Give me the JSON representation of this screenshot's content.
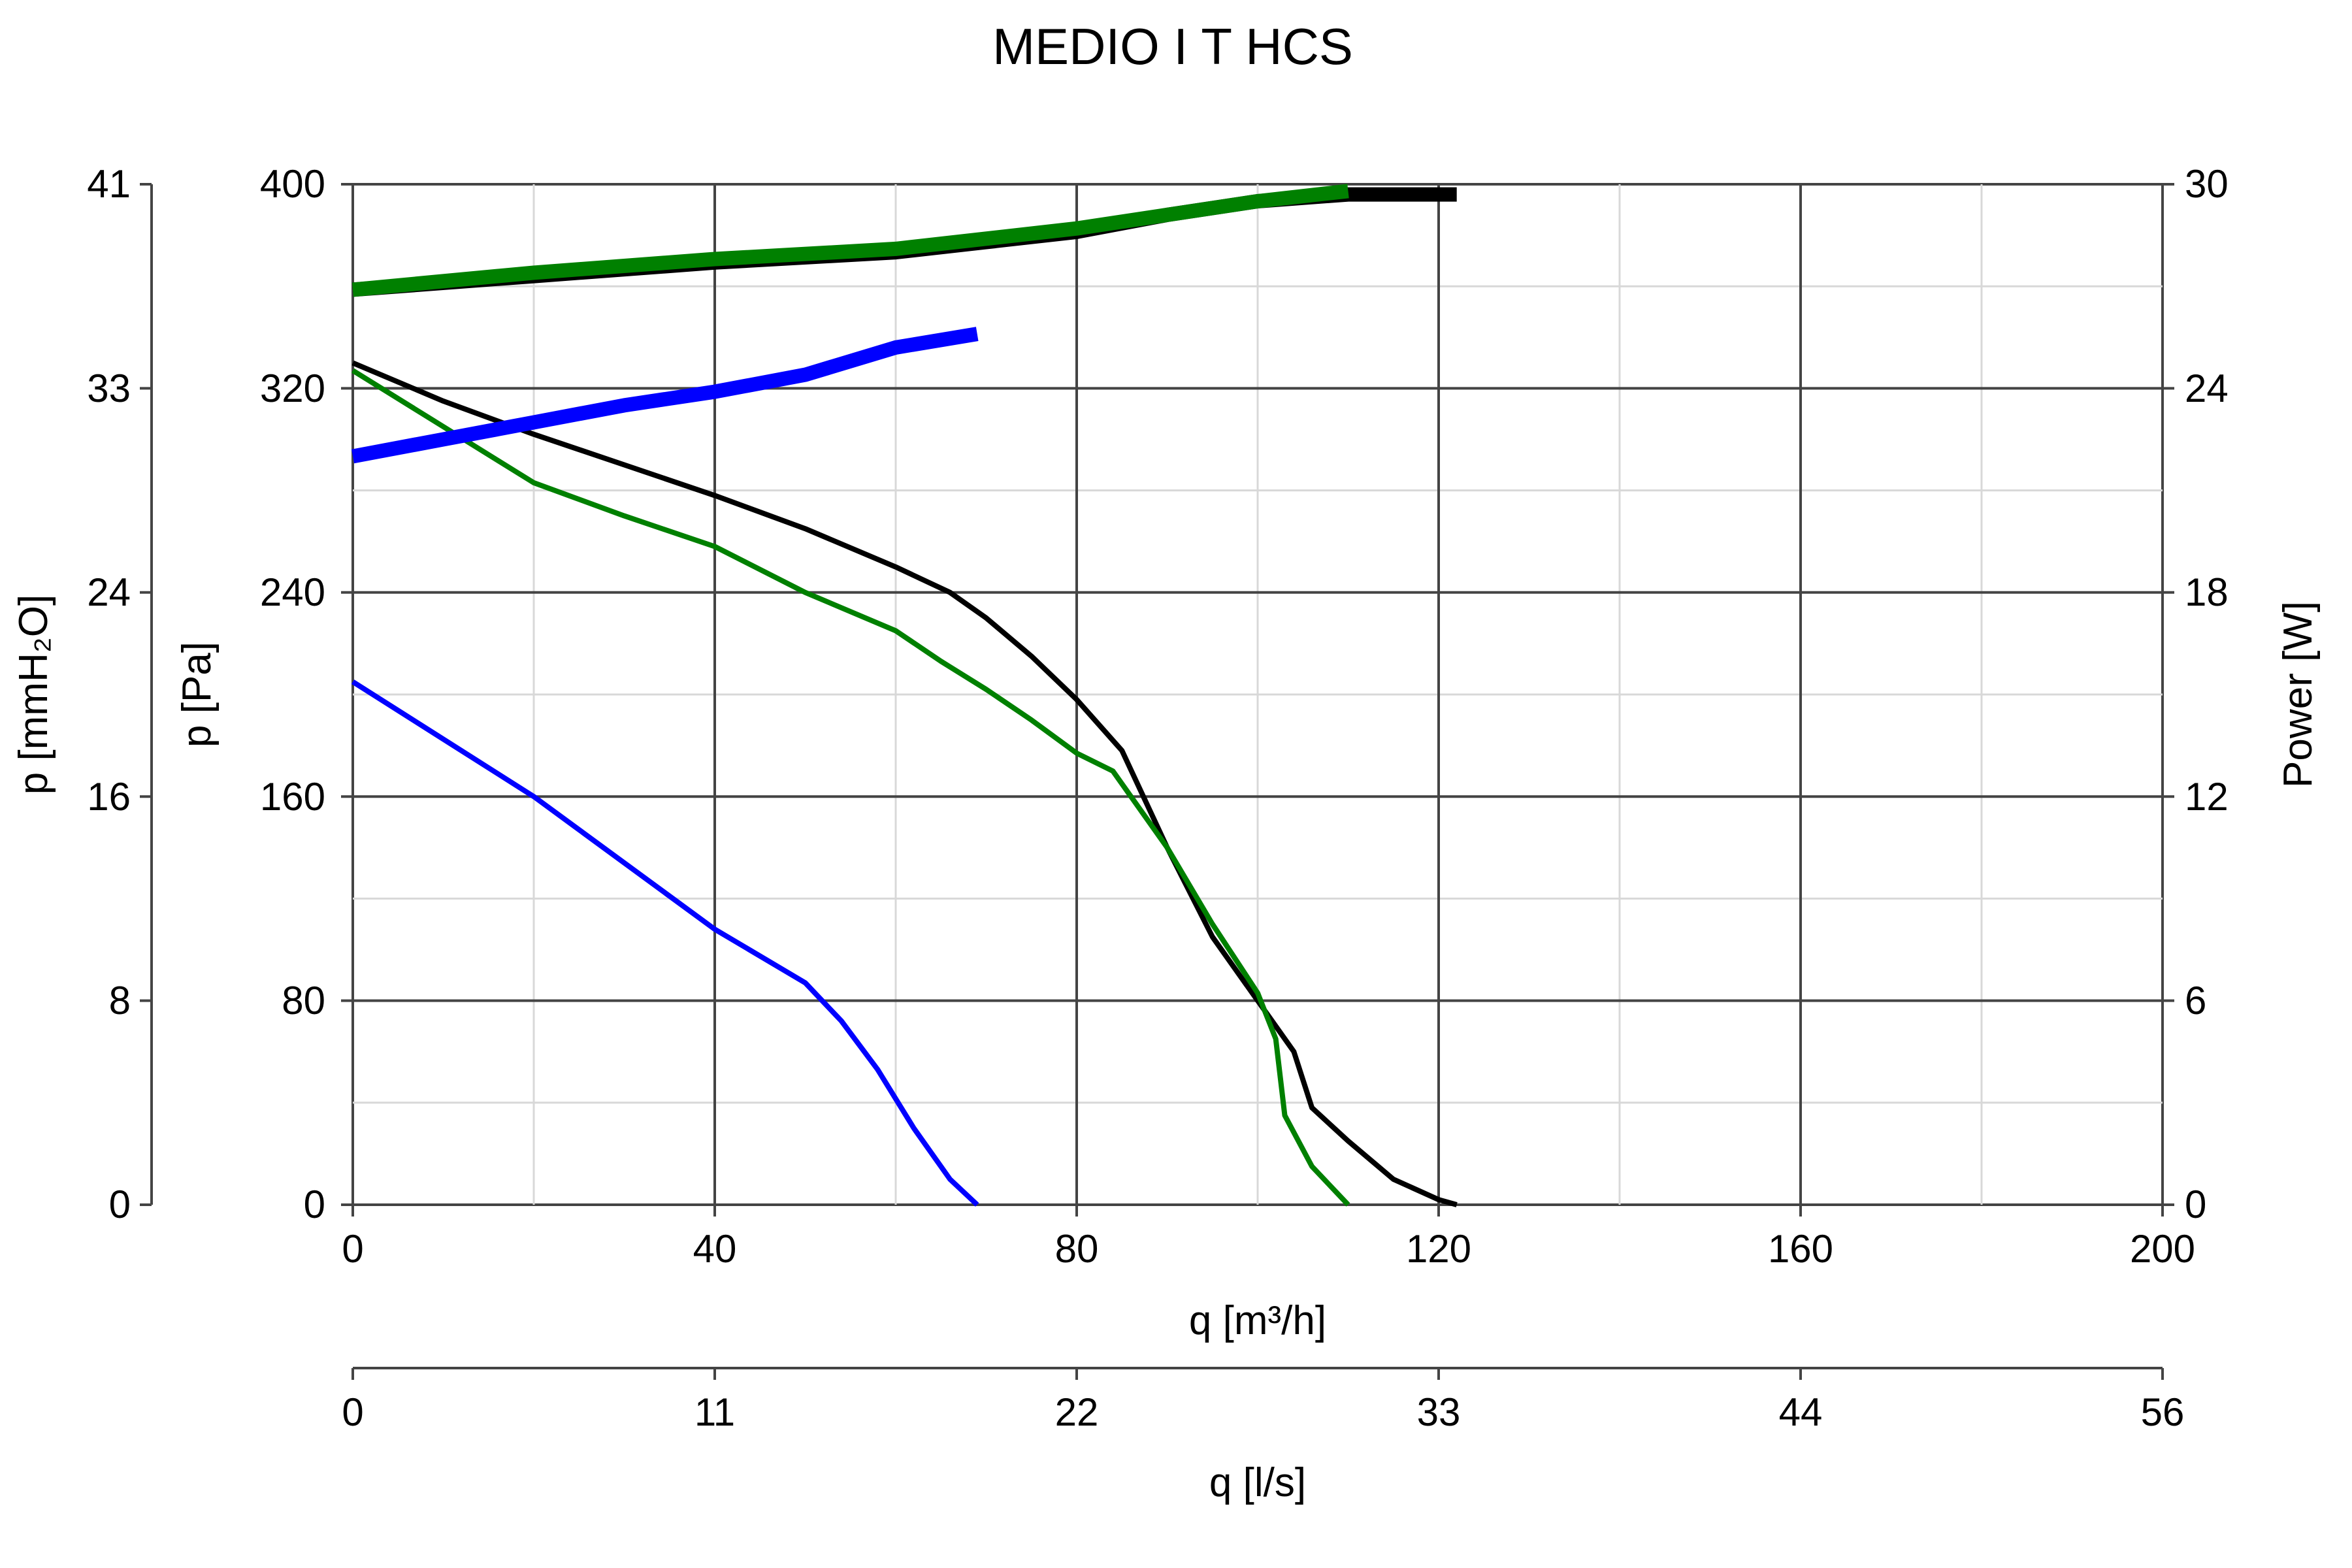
{
  "chart_data": {
    "type": "line",
    "title": "MEDIO I T HCS",
    "xlabel": "q [m³/h]",
    "xlabel_secondary": "q [l/s]",
    "ylabel": "p [Pa]",
    "ylabel_secondary": "p [mmH₂O]",
    "ylabel_right": "Power [W]",
    "xlim": [
      0,
      200
    ],
    "ylim": [
      0,
      400
    ],
    "ylim_right": [
      0,
      30
    ],
    "grid": true,
    "x_ticks": [
      "0",
      "40",
      "80",
      "120",
      "160",
      "200"
    ],
    "x_ticks_ls": [
      "0",
      "11",
      "22",
      "33",
      "44",
      "56"
    ],
    "y_ticks_pa": [
      "0",
      "80",
      "160",
      "240",
      "320",
      "400"
    ],
    "y_ticks_mmh2o": [
      "0",
      "8",
      "16",
      "24",
      "33",
      "41"
    ],
    "y_ticks_power": [
      "0",
      "6",
      "12",
      "18",
      "24",
      "30"
    ],
    "series": [
      {
        "kind": "pressure",
        "axis": "pressure",
        "color": "#000000",
        "points": [
          [
            0,
            330
          ],
          [
            10,
            315
          ],
          [
            20,
            302
          ],
          [
            30,
            290
          ],
          [
            40,
            278
          ],
          [
            50,
            265
          ],
          [
            60,
            250
          ],
          [
            66,
            240
          ],
          [
            70,
            230
          ],
          [
            75,
            215
          ],
          [
            80,
            198
          ],
          [
            85,
            178
          ],
          [
            90,
            140
          ],
          [
            95,
            105
          ],
          [
            100,
            80
          ],
          [
            104,
            60
          ],
          [
            106,
            38
          ],
          [
            110,
            25
          ],
          [
            115,
            10
          ],
          [
            120,
            2
          ],
          [
            122,
            0
          ]
        ]
      },
      {
        "kind": "pressure",
        "axis": "pressure",
        "color": "#008000",
        "points": [
          [
            0,
            327
          ],
          [
            10,
            305
          ],
          [
            20,
            283
          ],
          [
            30,
            270
          ],
          [
            40,
            258
          ],
          [
            50,
            240
          ],
          [
            60,
            225
          ],
          [
            65,
            213
          ],
          [
            70,
            202
          ],
          [
            75,
            190
          ],
          [
            80,
            177
          ],
          [
            84,
            170
          ],
          [
            90,
            140
          ],
          [
            95,
            110
          ],
          [
            100,
            83
          ],
          [
            102,
            65
          ],
          [
            103,
            35
          ],
          [
            106,
            15
          ],
          [
            110,
            0
          ]
        ]
      },
      {
        "kind": "pressure",
        "axis": "pressure",
        "color": "#0000ff",
        "points": [
          [
            0,
            205
          ],
          [
            20,
            160
          ],
          [
            40,
            108
          ],
          [
            50,
            87
          ],
          [
            54,
            72
          ],
          [
            58,
            53
          ],
          [
            62,
            30
          ],
          [
            66,
            10
          ],
          [
            69,
            0
          ]
        ]
      },
      {
        "kind": "power",
        "axis": "power",
        "color": "#000000",
        "points": [
          [
            0,
            26.9
          ],
          [
            20,
            27.3
          ],
          [
            40,
            27.7
          ],
          [
            60,
            28.0
          ],
          [
            80,
            28.6
          ],
          [
            90,
            29.1
          ],
          [
            100,
            29.5
          ],
          [
            110,
            29.7
          ],
          [
            122,
            29.7
          ]
        ]
      },
      {
        "kind": "power",
        "axis": "power",
        "color": "#008000",
        "points": [
          [
            0,
            26.9
          ],
          [
            20,
            27.4
          ],
          [
            40,
            27.8
          ],
          [
            60,
            28.1
          ],
          [
            70,
            28.4
          ],
          [
            80,
            28.7
          ],
          [
            90,
            29.1
          ],
          [
            100,
            29.5
          ],
          [
            110,
            29.8
          ]
        ]
      },
      {
        "kind": "power",
        "axis": "power",
        "color": "#0000ff",
        "points": [
          [
            0,
            22.0
          ],
          [
            10,
            22.5
          ],
          [
            20,
            23.0
          ],
          [
            30,
            23.5
          ],
          [
            40,
            23.9
          ],
          [
            50,
            24.4
          ],
          [
            60,
            25.2
          ],
          [
            69,
            25.6
          ]
        ]
      }
    ]
  }
}
